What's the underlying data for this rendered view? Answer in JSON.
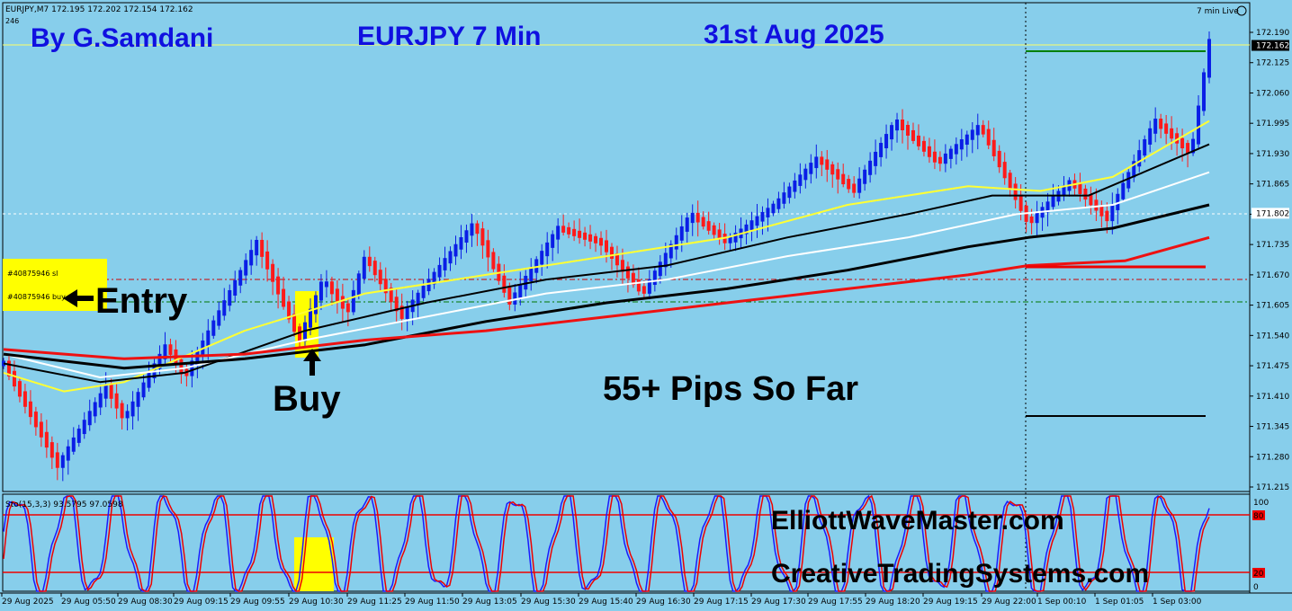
{
  "header": {
    "symbol_info": "EURJPY,M7  172.195 172.202 172.154 172.162",
    "bars_count": "246",
    "live_label": "7 min Live"
  },
  "overlays": {
    "author": "By G.Samdani",
    "pair": "EURJPY 7 Min",
    "date": "31st Aug 2025",
    "entry": "Entry",
    "buy": "Buy",
    "pips": "55+ Pips So Far",
    "site1": "ElliottWaveMaster.com",
    "site2": "CreativeTradingSystems.com",
    "order_sl": "#40875946 sl",
    "order_buy": "#40875946 buy"
  },
  "colors": {
    "background": "#87ceeb",
    "bull": "#0a1ee6",
    "bear": "#ff1a1a",
    "ma_yellow": "#ffff33",
    "ma_black": "#000000",
    "ma_white": "#ffffff",
    "ma_red": "#ee1111",
    "title_blue": "#1010e0"
  },
  "chart_data": {
    "type": "line",
    "price_axis": {
      "ticks": [
        "172.190",
        "172.125",
        "172.060",
        "171.995",
        "171.930",
        "171.865",
        "171.800",
        "171.735",
        "171.670",
        "171.605",
        "171.540",
        "171.475",
        "171.410",
        "171.345",
        "171.280",
        "171.215"
      ],
      "ylim": [
        171.215,
        172.19
      ],
      "current_price": "172.162",
      "hline_price": "171.802"
    },
    "time_axis": [
      "29 Aug 2025",
      "29 Aug 05:50",
      "29 Aug 08:30",
      "29 Aug 09:15",
      "29 Aug 09:55",
      "29 Aug 10:30",
      "29 Aug 11:25",
      "29 Aug 11:50",
      "29 Aug 13:05",
      "29 Aug 15:30",
      "29 Aug 15:40",
      "29 Aug 16:30",
      "29 Aug 17:15",
      "29 Aug 17:30",
      "29 Aug 17:55",
      "29 Aug 18:20",
      "29 Aug 19:15",
      "29 Aug 22:00",
      "1 Sep 00:10",
      "1 Sep 01:05",
      "1 Sep 03:00"
    ],
    "price_path": [
      [
        0,
        171.48
      ],
      [
        0.045,
        171.26
      ],
      [
        0.085,
        171.43
      ],
      [
        0.1,
        171.36
      ],
      [
        0.135,
        171.52
      ],
      [
        0.15,
        171.45
      ],
      [
        0.21,
        171.74
      ],
      [
        0.245,
        171.53
      ],
      [
        0.265,
        171.66
      ],
      [
        0.285,
        171.59
      ],
      [
        0.3,
        171.71
      ],
      [
        0.33,
        171.58
      ],
      [
        0.39,
        171.78
      ],
      [
        0.42,
        171.61
      ],
      [
        0.46,
        171.77
      ],
      [
        0.495,
        171.74
      ],
      [
        0.53,
        171.63
      ],
      [
        0.57,
        171.8
      ],
      [
        0.6,
        171.74
      ],
      [
        0.64,
        171.82
      ],
      [
        0.675,
        171.92
      ],
      [
        0.705,
        171.85
      ],
      [
        0.74,
        172.0
      ],
      [
        0.775,
        171.91
      ],
      [
        0.81,
        171.99
      ],
      [
        0.85,
        171.78
      ],
      [
        0.885,
        171.87
      ],
      [
        0.915,
        171.79
      ],
      [
        0.955,
        172.0
      ],
      [
        0.985,
        171.93
      ],
      [
        1.0,
        172.17
      ]
    ],
    "ma_series": [
      {
        "color": "yellow",
        "points": [
          [
            0,
            171.46
          ],
          [
            0.05,
            171.42
          ],
          [
            0.1,
            171.44
          ],
          [
            0.2,
            171.55
          ],
          [
            0.3,
            171.63
          ],
          [
            0.4,
            171.67
          ],
          [
            0.5,
            171.71
          ],
          [
            0.6,
            171.75
          ],
          [
            0.7,
            171.82
          ],
          [
            0.8,
            171.86
          ],
          [
            0.86,
            171.85
          ],
          [
            0.92,
            171.88
          ],
          [
            1.0,
            172.0
          ]
        ]
      },
      {
        "color": "black",
        "points": [
          [
            0,
            171.48
          ],
          [
            0.08,
            171.44
          ],
          [
            0.15,
            171.46
          ],
          [
            0.25,
            171.55
          ],
          [
            0.35,
            171.61
          ],
          [
            0.45,
            171.66
          ],
          [
            0.55,
            171.69
          ],
          [
            0.65,
            171.75
          ],
          [
            0.75,
            171.8
          ],
          [
            0.82,
            171.84
          ],
          [
            0.9,
            171.84
          ],
          [
            1.0,
            171.95
          ]
        ]
      },
      {
        "color": "white",
        "points": [
          [
            0,
            171.5
          ],
          [
            0.08,
            171.45
          ],
          [
            0.15,
            171.47
          ],
          [
            0.25,
            171.53
          ],
          [
            0.35,
            171.58
          ],
          [
            0.45,
            171.63
          ],
          [
            0.55,
            171.66
          ],
          [
            0.65,
            171.71
          ],
          [
            0.75,
            171.75
          ],
          [
            0.84,
            171.8
          ],
          [
            0.92,
            171.82
          ],
          [
            1.0,
            171.89
          ]
        ]
      },
      {
        "color": "black_thick",
        "points": [
          [
            0,
            171.5
          ],
          [
            0.1,
            171.47
          ],
          [
            0.2,
            171.49
          ],
          [
            0.3,
            171.52
          ],
          [
            0.4,
            171.57
          ],
          [
            0.5,
            171.61
          ],
          [
            0.6,
            171.64
          ],
          [
            0.7,
            171.68
          ],
          [
            0.8,
            171.73
          ],
          [
            0.85,
            171.75
          ],
          [
            0.92,
            171.77
          ],
          [
            1.0,
            171.82
          ]
        ]
      },
      {
        "color": "red",
        "points": [
          [
            0,
            171.51
          ],
          [
            0.1,
            171.49
          ],
          [
            0.2,
            171.5
          ],
          [
            0.3,
            171.53
          ],
          [
            0.4,
            171.55
          ],
          [
            0.5,
            171.58
          ],
          [
            0.6,
            171.61
          ],
          [
            0.7,
            171.64
          ],
          [
            0.8,
            171.67
          ],
          [
            0.85,
            171.69
          ],
          [
            0.93,
            171.7
          ],
          [
            1.0,
            171.75
          ]
        ]
      }
    ],
    "levels": {
      "tp": 172.165,
      "sl_dashed": 171.665,
      "entry_dashed": 171.615,
      "red_level": 171.69,
      "black_level": 171.38
    },
    "oscillator": {
      "label": "Sto(15,3,3) 93.5795 97.0598",
      "scale_ticks": [
        "100",
        "80",
        "20",
        "0"
      ],
      "levels": [
        80,
        20
      ]
    }
  }
}
